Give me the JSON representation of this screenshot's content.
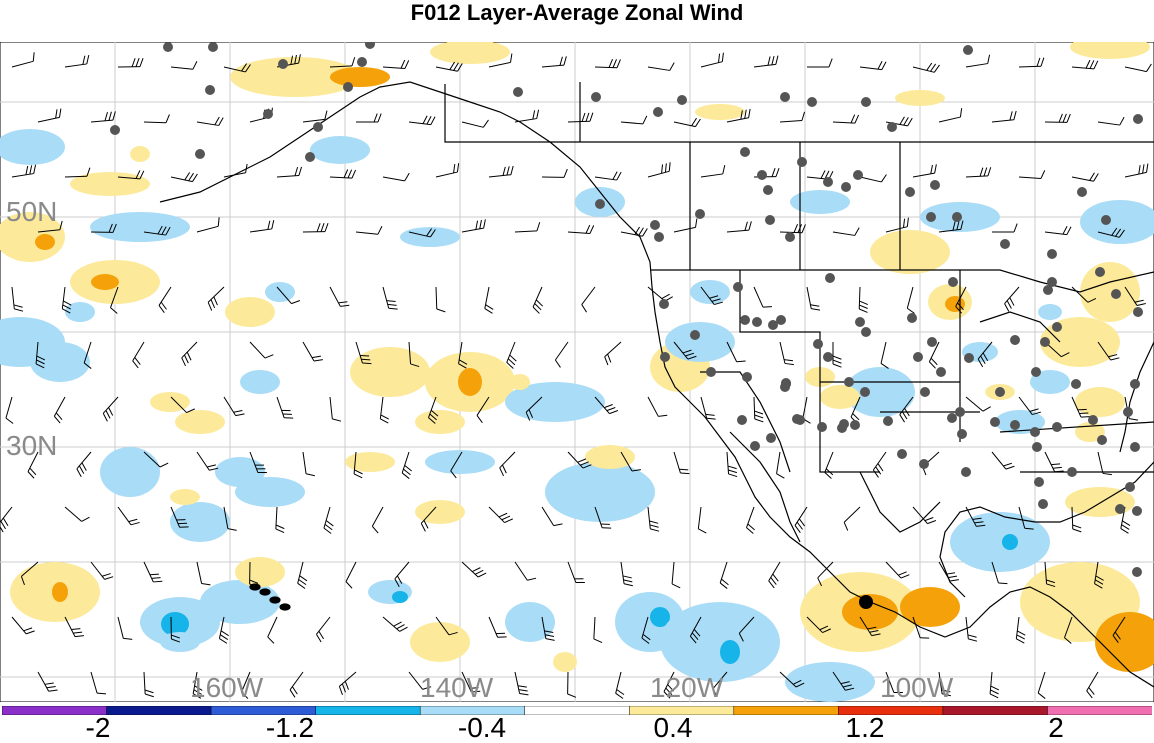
{
  "title": "F012 Layer-Average Zonal Wind",
  "latitude_labels": [
    "50N",
    "30N"
  ],
  "longitude_labels": [
    "160W",
    "140W",
    "120W",
    "100W"
  ],
  "colorbar": {
    "tick_labels": [
      "-2",
      "-1.2",
      "-0.4",
      "0.4",
      "1.2",
      "2"
    ],
    "colors": [
      "#8b2fc9",
      "#0b1a8c",
      "#2e5bd6",
      "#16b4e8",
      "#a9dcf7",
      "#ffffff",
      "#fcea9a",
      "#f5a20a",
      "#e8300f",
      "#a8182a",
      "#ef6fb0"
    ]
  },
  "colors": {
    "positive_light": "#fcea9a",
    "positive_mid": "#f5a20a",
    "negative_light": "#a9dcf7",
    "negative_mid": "#16b4e8",
    "station": "#555555",
    "highlight_station": "#000000",
    "grid": "#cccccc",
    "coastline": "#000000"
  },
  "legend_icon": "wind-barb-icon"
}
